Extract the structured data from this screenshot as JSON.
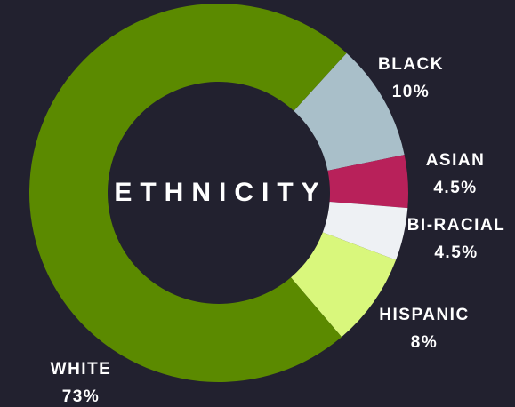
{
  "chart_data": {
    "type": "donut",
    "title": "ETHNICITY",
    "categories": [
      "BLACK",
      "ASIAN",
      "BI-RACIAL",
      "HISPANIC",
      "WHITE"
    ],
    "values": [
      10,
      4.5,
      4.5,
      8,
      73
    ],
    "value_labels": [
      "10%",
      "4.5%",
      "4.5%",
      "8%",
      "73%"
    ],
    "colors": [
      "#a9bfc9",
      "#b8215a",
      "#eef1f4",
      "#d9f77c",
      "#5b8a00"
    ]
  }
}
